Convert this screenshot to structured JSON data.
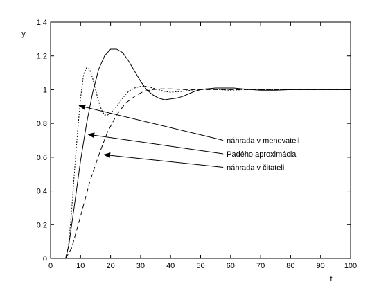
{
  "chart_data": {
    "type": "line",
    "title": "",
    "xlabel": "t",
    "ylabel": "y",
    "xlim": [
      0,
      100
    ],
    "ylim": [
      0,
      1.4
    ],
    "xticks": [
      0,
      10,
      20,
      30,
      40,
      50,
      60,
      70,
      80,
      90,
      100
    ],
    "yticks": [
      0,
      0.2,
      0.4,
      0.6,
      0.8,
      1,
      1.2,
      1.4
    ],
    "grid": false,
    "legend": "none",
    "series": [
      {
        "style": "solid",
        "x": [
          5,
          6,
          8,
          10,
          12,
          14,
          16,
          18,
          20,
          22,
          24,
          26,
          28,
          30,
          32,
          34,
          36,
          38,
          40,
          42,
          44,
          46,
          48,
          50,
          52,
          55,
          58,
          61,
          64,
          67,
          70,
          75,
          80,
          85,
          90,
          95,
          100
        ],
        "y": [
          0,
          0.07,
          0.32,
          0.58,
          0.8,
          0.98,
          1.12,
          1.2,
          1.24,
          1.24,
          1.22,
          1.17,
          1.11,
          1.05,
          1.0,
          0.97,
          0.95,
          0.94,
          0.945,
          0.95,
          0.96,
          0.975,
          0.99,
          1.0,
          1.005,
          1.01,
          1.01,
          1.01,
          1.005,
          1.0,
          0.997,
          0.997,
          1.0,
          1.0,
          1.0,
          1.0,
          1.0
        ]
      },
      {
        "style": "dotted",
        "x": [
          5,
          6,
          7,
          8,
          9,
          10,
          11,
          12,
          13,
          14,
          15,
          16,
          17,
          18,
          19,
          20,
          22,
          24,
          26,
          28,
          30,
          32,
          34,
          36,
          38,
          40,
          44,
          48,
          52,
          56,
          60,
          65,
          70,
          80,
          90,
          100
        ],
        "y": [
          0,
          0.08,
          0.28,
          0.52,
          0.75,
          0.95,
          1.09,
          1.13,
          1.12,
          1.07,
          1.0,
          0.93,
          0.88,
          0.85,
          0.85,
          0.86,
          0.9,
          0.95,
          0.99,
          1.01,
          1.02,
          1.02,
          1.01,
          1.0,
          0.99,
          0.985,
          0.99,
          1.0,
          1.005,
          1.0,
          0.997,
          1.0,
          1.0,
          1.0,
          1.0,
          1.0
        ]
      },
      {
        "style": "dashed",
        "x": [
          5,
          7,
          10,
          13,
          16,
          19,
          22,
          25,
          28,
          31,
          34,
          37,
          40,
          45,
          50,
          55,
          60,
          65,
          70,
          80,
          90,
          100
        ],
        "y": [
          0,
          0.06,
          0.25,
          0.45,
          0.61,
          0.75,
          0.85,
          0.92,
          0.96,
          0.99,
          1.0,
          1.005,
          1.005,
          1.0,
          1.0,
          1.0,
          1.0,
          1.0,
          1.0,
          1.0,
          1.0,
          1.0
        ]
      }
    ],
    "annotations": [
      {
        "text": "náhrada v menovateli",
        "label_x": 58,
        "label_y": 0.7,
        "arrow_x": 9.5,
        "arrow_y": 0.905
      },
      {
        "text": "Padého aproximácia",
        "label_x": 58,
        "label_y": 0.62,
        "arrow_x": 12.5,
        "arrow_y": 0.735
      },
      {
        "text": "náhrada v čitateli",
        "label_x": 58,
        "label_y": 0.54,
        "arrow_x": 17.8,
        "arrow_y": 0.615
      }
    ]
  }
}
